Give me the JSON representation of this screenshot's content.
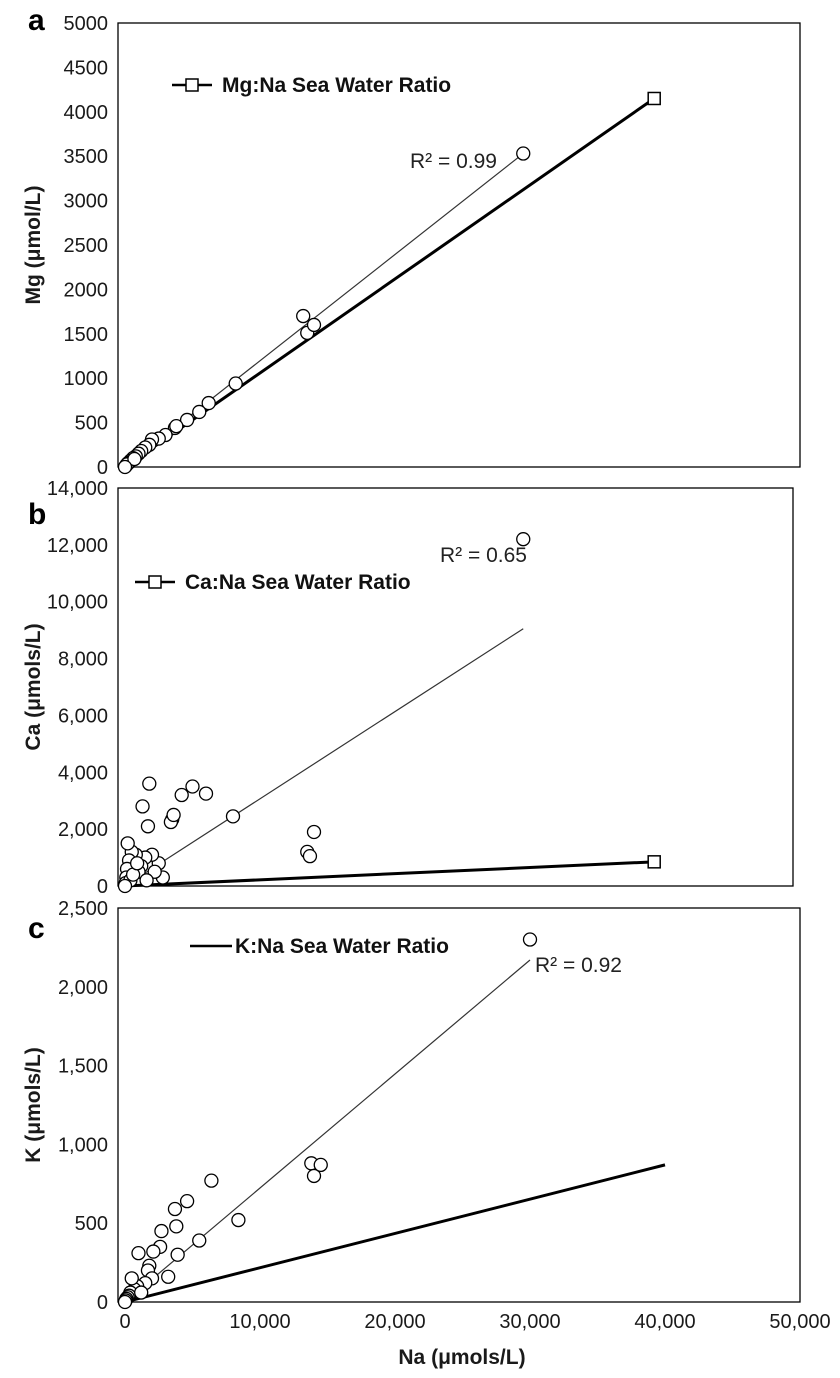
{
  "chart_data": [
    {
      "type": "scatter",
      "panel_label": "a",
      "ylabel": "Mg (μmol/L)",
      "xlim": [
        0,
        50000
      ],
      "ylim": [
        0,
        5000
      ],
      "y_ticks": [
        {
          "v": 0,
          "label": "0"
        },
        {
          "v": 500,
          "label": "500"
        },
        {
          "v": 1000,
          "label": "1000"
        },
        {
          "v": 1500,
          "label": "1500"
        },
        {
          "v": 2000,
          "label": "2000"
        },
        {
          "v": 2500,
          "label": "2500"
        },
        {
          "v": 3000,
          "label": "3000"
        },
        {
          "v": 3500,
          "label": "3500"
        },
        {
          "v": 4000,
          "label": "4000"
        },
        {
          "v": 4500,
          "label": "4500"
        },
        {
          "v": 5000,
          "label": "5000"
        }
      ],
      "legend": {
        "label": "Mg:Na Sea Water Ratio",
        "marker": "square"
      },
      "sea_water_line": {
        "x": [
          0,
          39200
        ],
        "y": [
          0,
          4150
        ],
        "end_marker": "square"
      },
      "trendline": {
        "x": [
          0,
          29500
        ],
        "y": [
          0,
          3530
        ]
      },
      "r2_label": "R² = 0.99",
      "points": [
        [
          29500,
          3530
        ],
        [
          13200,
          1700
        ],
        [
          13500,
          1510
        ],
        [
          14000,
          1600
        ],
        [
          8200,
          940
        ],
        [
          6200,
          720
        ],
        [
          5500,
          620
        ],
        [
          4600,
          530
        ],
        [
          3700,
          440
        ],
        [
          3800,
          460
        ],
        [
          3000,
          360
        ],
        [
          2500,
          320
        ],
        [
          2000,
          310
        ],
        [
          1800,
          250
        ],
        [
          1500,
          220
        ],
        [
          1200,
          180
        ],
        [
          1000,
          150
        ],
        [
          800,
          120
        ],
        [
          600,
          100
        ],
        [
          400,
          70
        ],
        [
          300,
          50
        ],
        [
          200,
          40
        ],
        [
          100,
          20
        ],
        [
          50,
          10
        ],
        [
          150,
          30
        ],
        [
          700,
          90
        ],
        [
          0,
          0
        ]
      ]
    },
    {
      "type": "scatter",
      "panel_label": "b",
      "ylabel": "Ca (μmols/L)",
      "xlim": [
        0,
        50000
      ],
      "ylim": [
        0,
        14000
      ],
      "y_ticks": [
        {
          "v": 0,
          "label": "0"
        },
        {
          "v": 2000,
          "label": "2,000"
        },
        {
          "v": 4000,
          "label": "4,000"
        },
        {
          "v": 6000,
          "label": "6,000"
        },
        {
          "v": 8000,
          "label": "8,000"
        },
        {
          "v": 10000,
          "label": "10,000"
        },
        {
          "v": 12000,
          "label": "12,000"
        },
        {
          "v": 14000,
          "label": "14,000"
        }
      ],
      "legend": {
        "label": "Ca:Na Sea Water Ratio",
        "marker": "square"
      },
      "sea_water_line": {
        "x": [
          0,
          39200
        ],
        "y": [
          0,
          850
        ],
        "end_marker": "square"
      },
      "trendline": {
        "x": [
          0,
          29500
        ],
        "y": [
          0,
          9050
        ]
      },
      "r2_label": "R² = 0.65",
      "points": [
        [
          29500,
          12200
        ],
        [
          13500,
          1200
        ],
        [
          13700,
          1050
        ],
        [
          14000,
          1900
        ],
        [
          8000,
          2450
        ],
        [
          5000,
          3500
        ],
        [
          6000,
          3250
        ],
        [
          4200,
          3200
        ],
        [
          3500,
          2350
        ],
        [
          3400,
          2250
        ],
        [
          3600,
          2500
        ],
        [
          1800,
          3600
        ],
        [
          1300,
          2800
        ],
        [
          1700,
          2100
        ],
        [
          2500,
          800
        ],
        [
          2800,
          300
        ],
        [
          2200,
          500
        ],
        [
          2000,
          1100
        ],
        [
          1500,
          1000
        ],
        [
          1200,
          700
        ],
        [
          1000,
          500
        ],
        [
          800,
          1100
        ],
        [
          500,
          1200
        ],
        [
          300,
          900
        ],
        [
          200,
          1500
        ],
        [
          150,
          600
        ],
        [
          100,
          300
        ],
        [
          50,
          100
        ],
        [
          400,
          200
        ],
        [
          600,
          400
        ],
        [
          900,
          800
        ],
        [
          1600,
          200
        ],
        [
          0,
          0
        ]
      ]
    },
    {
      "type": "scatter",
      "panel_label": "c",
      "ylabel": "K (μmols/L)",
      "xlabel": "Na (μmols/L)",
      "xlim": [
        0,
        50000
      ],
      "ylim": [
        0,
        2500
      ],
      "x_ticks": [
        {
          "v": 0,
          "label": "0"
        },
        {
          "v": 10000,
          "label": "10,000"
        },
        {
          "v": 20000,
          "label": "20,000"
        },
        {
          "v": 30000,
          "label": "30,000"
        },
        {
          "v": 40000,
          "label": "40,000"
        },
        {
          "v": 50000,
          "label": "50,000"
        }
      ],
      "y_ticks": [
        {
          "v": 0,
          "label": "0"
        },
        {
          "v": 500,
          "label": "500"
        },
        {
          "v": 1000,
          "label": "1,000"
        },
        {
          "v": 1500,
          "label": "1,500"
        },
        {
          "v": 2000,
          "label": "2,000"
        },
        {
          "v": 2500,
          "label": "2,500"
        }
      ],
      "legend": {
        "label": "K:Na Sea Water Ratio",
        "marker": "none"
      },
      "sea_water_line": {
        "x": [
          0,
          40000
        ],
        "y": [
          0,
          870
        ],
        "end_marker": "none"
      },
      "trendline": {
        "x": [
          0,
          30000
        ],
        "y": [
          0,
          2170
        ]
      },
      "r2_label": "R² = 0.92",
      "points": [
        [
          30000,
          2300
        ],
        [
          13800,
          880
        ],
        [
          14000,
          800
        ],
        [
          14500,
          870
        ],
        [
          8400,
          520
        ],
        [
          6400,
          770
        ],
        [
          5500,
          390
        ],
        [
          4600,
          640
        ],
        [
          3900,
          300
        ],
        [
          3800,
          480
        ],
        [
          3700,
          590
        ],
        [
          3200,
          160
        ],
        [
          2700,
          450
        ],
        [
          2600,
          350
        ],
        [
          2100,
          320
        ],
        [
          1800,
          230
        ],
        [
          1700,
          200
        ],
        [
          2000,
          150
        ],
        [
          1500,
          120
        ],
        [
          1000,
          310
        ],
        [
          900,
          100
        ],
        [
          700,
          80
        ],
        [
          500,
          150
        ],
        [
          400,
          60
        ],
        [
          300,
          40
        ],
        [
          200,
          30
        ],
        [
          100,
          20
        ],
        [
          50,
          10
        ],
        [
          1200,
          60
        ],
        [
          0,
          0
        ]
      ]
    }
  ]
}
